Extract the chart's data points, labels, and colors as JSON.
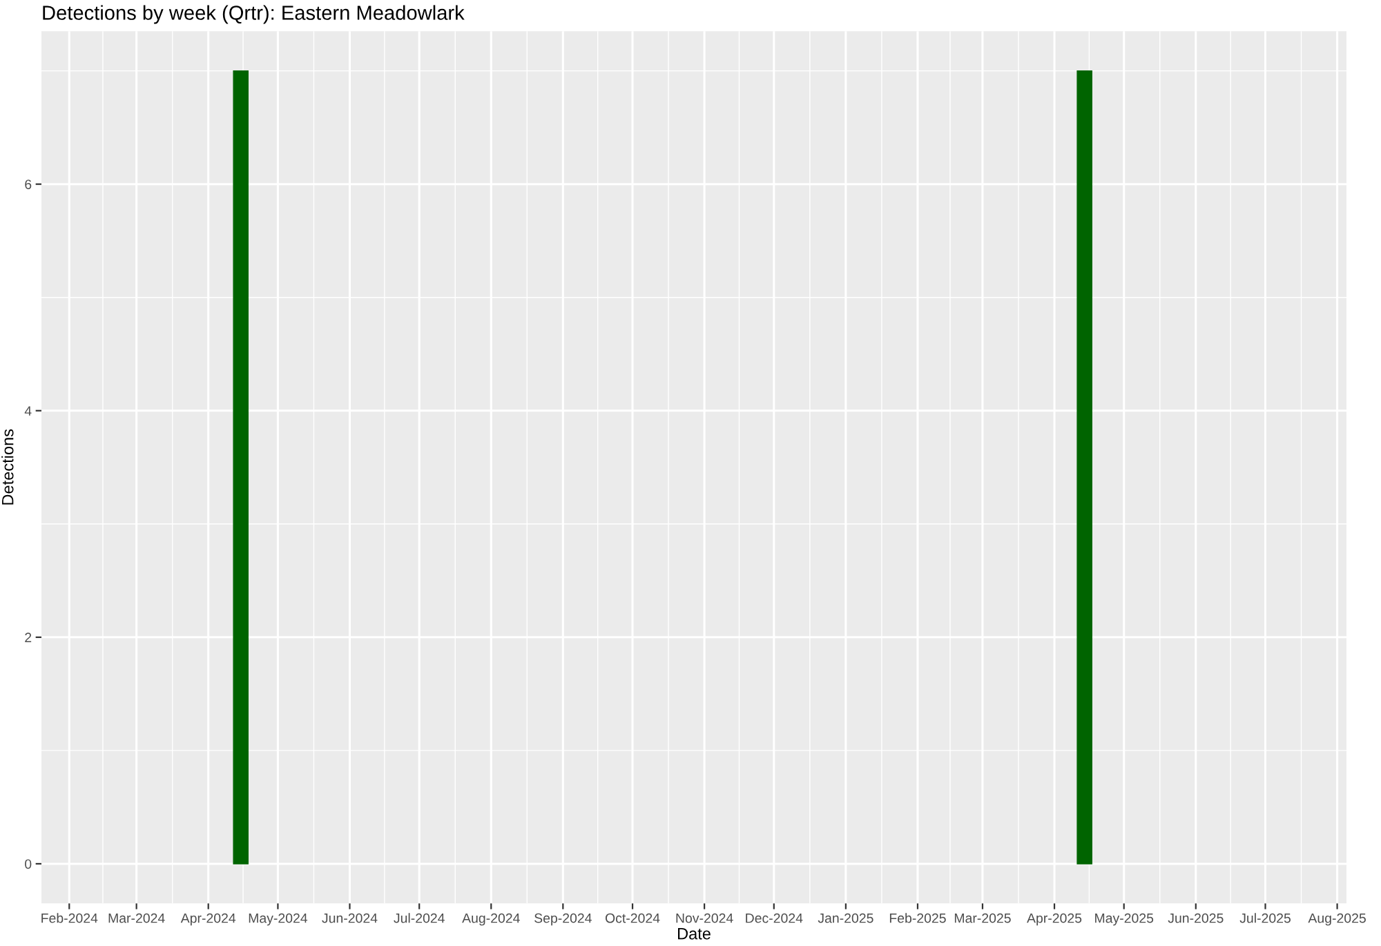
{
  "chart_data": {
    "type": "bar",
    "title": "Detections by week (Qrtr): Eastern Meadowlark",
    "xlabel": "Date",
    "ylabel": "Detections",
    "x": [
      "2024-04-15",
      "2025-04-14"
    ],
    "values": [
      7,
      7
    ],
    "color": "#006400",
    "xlim": [
      "2024-01-20",
      "2025-08-05"
    ],
    "xticks": [
      {
        "value": "2024-02-01",
        "label": "Feb-2024"
      },
      {
        "value": "2024-03-01",
        "label": "Mar-2024"
      },
      {
        "value": "2024-04-01",
        "label": "Apr-2024"
      },
      {
        "value": "2024-05-01",
        "label": "May-2024"
      },
      {
        "value": "2024-06-01",
        "label": "Jun-2024"
      },
      {
        "value": "2024-07-01",
        "label": "Jul-2024"
      },
      {
        "value": "2024-08-01",
        "label": "Aug-2024"
      },
      {
        "value": "2024-09-01",
        "label": "Sep-2024"
      },
      {
        "value": "2024-10-01",
        "label": "Oct-2024"
      },
      {
        "value": "2024-11-01",
        "label": "Nov-2024"
      },
      {
        "value": "2024-12-01",
        "label": "Dec-2024"
      },
      {
        "value": "2025-01-01",
        "label": "Jan-2025"
      },
      {
        "value": "2025-02-01",
        "label": "Feb-2025"
      },
      {
        "value": "2025-03-01",
        "label": "Mar-2025"
      },
      {
        "value": "2025-04-01",
        "label": "Apr-2025"
      },
      {
        "value": "2025-05-01",
        "label": "May-2025"
      },
      {
        "value": "2025-06-01",
        "label": "Jun-2025"
      },
      {
        "value": "2025-07-01",
        "label": "Jul-2025"
      },
      {
        "value": "2025-08-01",
        "label": "Aug-2025"
      }
    ],
    "ylim": [
      -0.35,
      7.35
    ],
    "yticks": [
      0,
      2,
      4,
      6
    ],
    "grid": true
  }
}
